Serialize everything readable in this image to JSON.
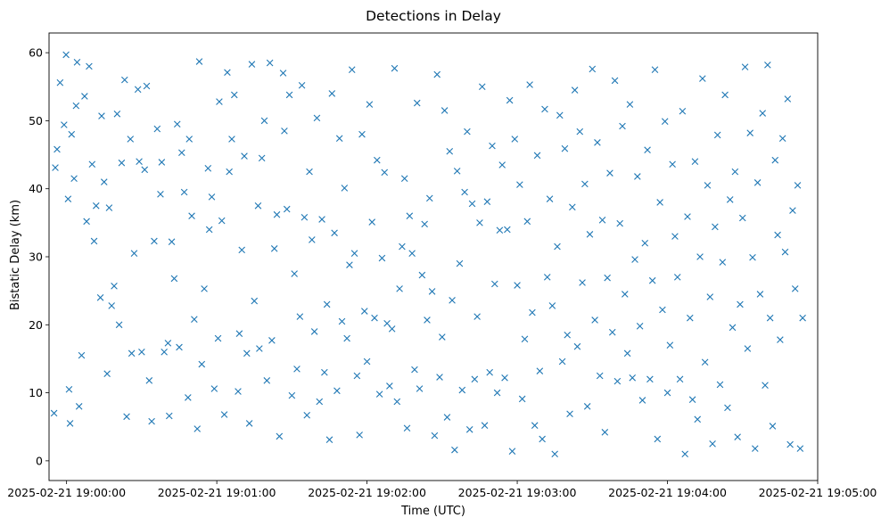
{
  "chart_data": {
    "type": "scatter",
    "title": "Detections in Delay",
    "xlabel": "Time (UTC)",
    "ylabel": "Bistatic Delay (km)",
    "marker": "x",
    "color": "#1f77b4",
    "grid": false,
    "legend": "none",
    "x_unit": "seconds after 2025-02-21 19:00:00 UTC",
    "xlim": [
      -7,
      300
    ],
    "ylim": [
      -2.9,
      62.9
    ],
    "x_ticks": [
      {
        "value": 0,
        "label": "2025-02-21 19:00:00"
      },
      {
        "value": 60,
        "label": "2025-02-21 19:01:00"
      },
      {
        "value": 120,
        "label": "2025-02-21 19:02:00"
      },
      {
        "value": 180,
        "label": "2025-02-21 19:03:00"
      },
      {
        "value": 240,
        "label": "2025-02-21 19:04:00"
      },
      {
        "value": 300,
        "label": "2025-02-21 19:05:00"
      }
    ],
    "y_ticks": [
      0,
      10,
      20,
      30,
      40,
      50,
      60
    ],
    "x": [
      -5.0,
      -4.5,
      -3.8,
      -2.6,
      -1.0,
      -0.2,
      0.6,
      1.0,
      1.4,
      2.0,
      3.0,
      3.8,
      4.2,
      5.0,
      6.0,
      7.2,
      8.0,
      9.0,
      10.2,
      11.0,
      11.8,
      13.5,
      14.0,
      15.0,
      16.2,
      17.0,
      18.0,
      19.0,
      20.2,
      21.0,
      22.0,
      23.2,
      24.0,
      25.5,
      26.0,
      27.0,
      28.5,
      29.0,
      30.0,
      31.2,
      32.0,
      33.0,
      34.0,
      35.0,
      36.2,
      37.5,
      38.0,
      39.0,
      40.5,
      41.0,
      42.0,
      43.0,
      44.2,
      45.0,
      46.0,
      47.0,
      48.5,
      49.0,
      50.0,
      51.0,
      52.2,
      53.0,
      54.0,
      55.0,
      56.5,
      57.0,
      58.0,
      59.0,
      60.5,
      61.0,
      62.0,
      63.0,
      64.2,
      65.0,
      66.0,
      67.0,
      68.5,
      69.0,
      70.0,
      71.0,
      72.0,
      73.0,
      74.0,
      75.0,
      76.5,
      77.0,
      78.0,
      79.0,
      80.0,
      81.2,
      82.0,
      83.0,
      84.0,
      85.0,
      86.5,
      87.0,
      88.0,
      89.0,
      90.0,
      91.0,
      92.0,
      93.2,
      94.0,
      95.0,
      96.0,
      97.0,
      98.0,
      99.0,
      100.0,
      101.0,
      102.0,
      103.0,
      104.0,
      105.0,
      106.0,
      107.0,
      108.0,
      109.0,
      110.0,
      111.0,
      112.0,
      113.0,
      114.0,
      115.0,
      116.0,
      117.0,
      118.0,
      119.0,
      120.0,
      121.0,
      122.0,
      123.0,
      124.0,
      125.0,
      126.0,
      127.0,
      128.0,
      129.0,
      130.0,
      131.0,
      132.0,
      133.0,
      134.0,
      135.0,
      136.0,
      137.0,
      138.0,
      139.0,
      140.0,
      141.0,
      142.0,
      143.0,
      144.0,
      145.0,
      146.0,
      147.0,
      148.0,
      149.0,
      150.0,
      151.0,
      152.0,
      153.0,
      154.0,
      155.0,
      156.0,
      157.0,
      158.0,
      159.0,
      160.0,
      161.0,
      162.0,
      163.0,
      164.0,
      165.0,
      166.0,
      167.0,
      168.0,
      169.0,
      170.0,
      171.0,
      172.0,
      173.0,
      174.0,
      175.0,
      176.0,
      177.0,
      178.0,
      179.0,
      180.0,
      181.0,
      182.0,
      183.0,
      184.0,
      185.0,
      186.0,
      187.0,
      188.0,
      189.0,
      190.0,
      191.0,
      192.0,
      193.0,
      194.0,
      195.0,
      196.0,
      197.0,
      198.0,
      199.0,
      200.0,
      201.0,
      202.0,
      203.0,
      204.0,
      205.0,
      206.0,
      207.0,
      208.0,
      209.0,
      210.0,
      211.0,
      212.0,
      213.0,
      214.0,
      215.0,
      216.0,
      217.0,
      218.0,
      219.0,
      220.0,
      221.0,
      222.0,
      223.0,
      224.0,
      225.0,
      226.0,
      227.0,
      228.0,
      229.0,
      230.0,
      231.0,
      232.0,
      233.0,
      234.0,
      235.0,
      236.0,
      237.0,
      238.0,
      239.0,
      240.0,
      241.0,
      242.0,
      243.0,
      244.0,
      245.0,
      246.0,
      247.0,
      248.0,
      249.0,
      250.0,
      251.0,
      252.0,
      253.0,
      254.0,
      255.0,
      256.0,
      257.0,
      258.0,
      259.0,
      260.0,
      261.0,
      262.0,
      263.0,
      264.0,
      265.0,
      266.0,
      267.0,
      268.0,
      269.0,
      270.0,
      271.0,
      272.0,
      273.0,
      274.0,
      275.0,
      276.0,
      277.0,
      278.0,
      279.0,
      280.0,
      281.0,
      282.0,
      283.0,
      284.0,
      285.0,
      286.0,
      287.0,
      288.0,
      289.0,
      290.0,
      291.0,
      292.0,
      293.0,
      294.0
    ],
    "y": [
      7.0,
      43.1,
      45.8,
      55.6,
      49.4,
      59.7,
      38.5,
      10.5,
      5.5,
      48.0,
      41.5,
      52.2,
      58.6,
      8.0,
      15.5,
      53.6,
      35.2,
      58.0,
      43.6,
      32.3,
      37.5,
      24.0,
      50.7,
      41.0,
      12.8,
      37.2,
      22.8,
      25.7,
      51.0,
      20.0,
      43.8,
      56.0,
      6.5,
      47.3,
      15.8,
      30.5,
      54.6,
      44.0,
      16.0,
      42.8,
      55.1,
      11.8,
      5.8,
      32.3,
      48.8,
      39.2,
      43.9,
      16.0,
      17.3,
      6.6,
      32.2,
      26.8,
      49.5,
      16.7,
      45.3,
      39.5,
      9.3,
      47.3,
      36.0,
      20.8,
      4.7,
      58.7,
      14.2,
      25.3,
      43.0,
      34.0,
      38.8,
      10.6,
      18.0,
      52.8,
      35.3,
      6.8,
      57.1,
      42.5,
      47.3,
      53.8,
      10.2,
      18.7,
      31.0,
      44.8,
      15.8,
      5.5,
      58.3,
      23.5,
      37.5,
      16.5,
      44.5,
      50.0,
      11.8,
      58.5,
      17.7,
      31.2,
      36.2,
      3.6,
      57.0,
      48.5,
      37.0,
      53.8,
      9.6,
      27.5,
      13.5,
      21.2,
      55.2,
      35.8,
      6.7,
      42.5,
      32.5,
      19.0,
      50.4,
      8.7,
      35.5,
      13.0,
      23.0,
      3.1,
      54.0,
      33.5,
      10.3,
      47.4,
      20.5,
      40.1,
      18.0,
      28.8,
      57.5,
      30.5,
      12.5,
      3.8,
      48.0,
      22.0,
      14.6,
      52.4,
      35.1,
      21.0,
      44.2,
      9.8,
      29.8,
      42.4,
      20.2,
      11.0,
      19.4,
      57.7,
      8.7,
      25.3,
      31.5,
      41.5,
      4.8,
      36.0,
      30.5,
      13.4,
      52.6,
      10.6,
      27.3,
      34.8,
      20.7,
      38.6,
      24.9,
      3.7,
      56.8,
      12.3,
      18.2,
      51.5,
      6.4,
      45.5,
      23.6,
      1.6,
      42.6,
      29.0,
      10.4,
      39.5,
      48.4,
      4.6,
      37.8,
      12.0,
      21.2,
      35.0,
      55.0,
      5.2,
      38.1,
      13.0,
      46.3,
      26.0,
      10.0,
      33.9,
      43.5,
      12.2,
      34.0,
      53.0,
      1.4,
      47.3,
      25.8,
      40.6,
      9.1,
      17.9,
      35.2,
      55.3,
      21.8,
      5.2,
      44.9,
      13.2,
      3.2,
      51.7,
      27.0,
      38.5,
      22.8,
      1.0,
      31.5,
      50.8,
      14.6,
      45.9,
      18.5,
      6.9,
      37.3,
      54.5,
      16.8,
      48.4,
      26.2,
      40.7,
      8.0,
      33.3,
      57.6,
      20.7,
      46.8,
      12.5,
      35.4,
      4.2,
      26.9,
      42.3,
      18.9,
      55.9,
      11.7,
      34.9,
      49.2,
      24.5,
      15.8,
      52.4,
      12.2,
      29.6,
      41.8,
      19.8,
      8.9,
      32.0,
      45.7,
      12.0,
      26.5,
      57.5,
      3.2,
      38.0,
      22.2,
      49.9,
      10.0,
      17.0,
      43.6,
      33.0,
      27.0,
      12.0,
      51.4,
      1.0,
      35.9,
      21.0,
      9.0,
      44.0,
      6.1,
      30.0,
      56.2,
      14.5,
      40.5,
      24.1,
      2.5,
      34.4,
      47.9,
      11.2,
      29.2,
      53.8,
      7.8,
      38.4,
      19.6,
      42.5,
      3.5,
      23.0,
      35.7,
      57.9,
      16.5,
      48.2,
      29.9,
      1.8,
      40.9,
      24.5,
      51.1,
      11.1,
      58.2,
      21.0,
      5.1,
      44.2,
      33.2,
      17.8,
      47.4,
      30.7,
      53.2,
      2.4,
      36.8,
      25.3,
      40.5,
      1.8,
      21.0
    ]
  }
}
